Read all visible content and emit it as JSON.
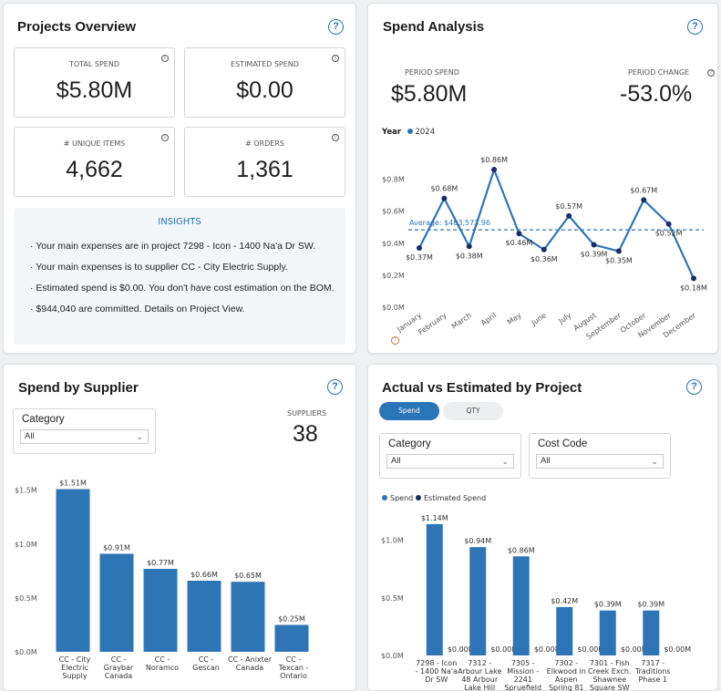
{
  "colors": {
    "accent": "#2a74b8",
    "bar": "#2e75b6",
    "estimated": "#1a2d6b",
    "insights_bg": "#f3f6f9"
  },
  "overview": {
    "title": "Projects Overview",
    "kpis": [
      {
        "label": "TOTAL SPEND",
        "value": "$5.80M"
      },
      {
        "label": "ESTIMATED SPEND",
        "value": "$0.00"
      },
      {
        "label": "# UNIQUE ITEMS",
        "value": "4,662"
      },
      {
        "label": "# ORDERS",
        "value": "1,361"
      }
    ],
    "insights": {
      "heading": "INSIGHTS",
      "items": [
        "· Your main expenses are in project 7298 - Icon - 1400 Na'a Dr SW.",
        "· Your main expenses is to supplier CC - City Electric Supply.",
        "· Estimated spend is $0.00. You don't have cost estimation on the BOM.",
        "· $944,040 are committed. Details on Project View."
      ]
    }
  },
  "spend_analysis": {
    "title": "Spend Analysis",
    "period_spend_label": "PERIOD SPEND",
    "period_spend_value": "$5.80M",
    "period_change_label": "PERIOD CHANGE",
    "period_change_value": "-53.0%",
    "legend_title": "Year",
    "legend_item": "2024",
    "average_label": "Average: $483,573.96"
  },
  "supplier": {
    "title": "Spend by Supplier",
    "category_label": "Category",
    "category_value": "All",
    "suppliers_label": "SUPPLIERS",
    "suppliers_count": "38"
  },
  "actual_vs_est": {
    "title": "Actual vs Estimated by Project",
    "toggle_spend": "Spend",
    "toggle_qty": "QTY",
    "category_label": "Category",
    "category_value": "All",
    "costcode_label": "Cost Code",
    "costcode_value": "All"
  },
  "chart_data": [
    {
      "type": "line",
      "categories": [
        "January",
        "February",
        "March",
        "April",
        "May",
        "June",
        "July",
        "August",
        "September",
        "October",
        "November",
        "December"
      ],
      "series": [
        {
          "name": "2024",
          "values": [
            0.37,
            0.68,
            0.38,
            0.86,
            0.46,
            0.36,
            0.57,
            0.39,
            0.35,
            0.67,
            0.52,
            0.18
          ]
        }
      ],
      "data_labels": [
        "$0.37M",
        "$0.68M",
        "$0.38M",
        "$0.86M",
        "$0.46M",
        "$0.36M",
        "$0.57M",
        "$0.39M",
        "$0.35M",
        "$0.67M",
        "$0.52M",
        "$0.18M"
      ],
      "average": 0.4836,
      "y_ticks": [
        "$0.0M",
        "$0.2M",
        "$0.4M",
        "$0.6M",
        "$0.8M"
      ],
      "ylim": [
        0,
        0.9
      ],
      "legend": "top-left"
    },
    {
      "type": "bar",
      "categories": [
        [
          "CC - City",
          "Electric",
          "Supply"
        ],
        [
          "CC -",
          "Graybar",
          "Canada"
        ],
        [
          "CC -",
          "Noramco"
        ],
        [
          "CC -",
          "Gescan"
        ],
        [
          "CC - Anixter",
          "Canada"
        ],
        [
          "CC -",
          "Texcan -",
          "Ontario"
        ]
      ],
      "values": [
        1.51,
        0.91,
        0.77,
        0.66,
        0.65,
        0.25
      ],
      "data_labels": [
        "$1.51M",
        "$0.91M",
        "$0.77M",
        "$0.66M",
        "$0.65M",
        "$0.25M"
      ],
      "y_ticks": [
        "$0.0M",
        "$0.5M",
        "$1.0M",
        "$1.5M"
      ],
      "ylim": [
        0,
        1.65
      ]
    },
    {
      "type": "bar",
      "legend": [
        "Spend",
        "Estimated Spend"
      ],
      "categories": [
        [
          "7298 - Icon",
          "- 1400 Na'a",
          "Dr SW"
        ],
        [
          "7312 -",
          "Arbour Lake",
          "48 Arbour",
          "Lake Hill"
        ],
        [
          "7305 -",
          "Mission -",
          "2241",
          "Spruefield"
        ],
        [
          "7302 -",
          "Elkwood in",
          "Aspen",
          "Spring 81"
        ],
        [
          "7301 - Fish",
          "Creek Exch.",
          "Shawnee",
          "Square SW"
        ],
        [
          "7317 -",
          "Traditions",
          "Phase 1"
        ]
      ],
      "series": [
        {
          "name": "Spend",
          "values": [
            1.14,
            0.94,
            0.86,
            0.42,
            0.39,
            0.39
          ],
          "labels": [
            "$1.14M",
            "$0.94M",
            "$0.86M",
            "$0.42M",
            "$0.39M",
            "$0.39M"
          ]
        },
        {
          "name": "Estimated Spend",
          "values": [
            0,
            0,
            0,
            0,
            0,
            0
          ],
          "labels": [
            "$0.00M",
            "$0.00M",
            "$0.00M",
            "$0.00M",
            "$0.00M",
            "$0.00M"
          ]
        }
      ],
      "y_ticks": [
        "$0.0M",
        "$0.5M",
        "$1.0M"
      ],
      "ylim": [
        0,
        1.25
      ]
    }
  ]
}
